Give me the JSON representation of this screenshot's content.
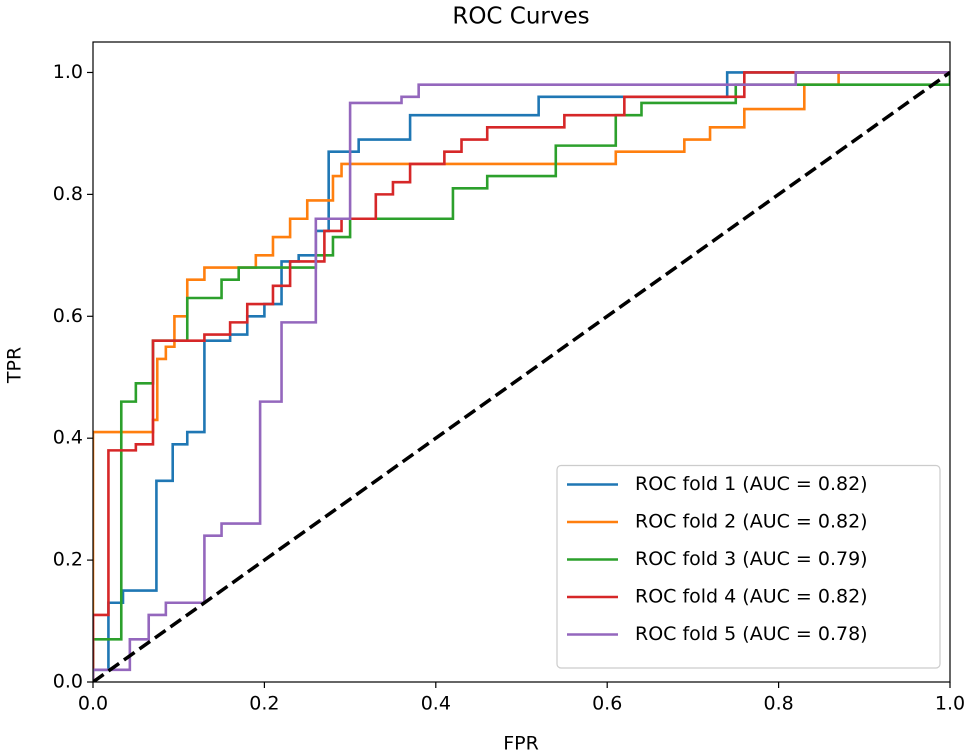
{
  "chart_data": {
    "type": "line",
    "title": "ROC Curves",
    "xlabel": "FPR",
    "ylabel": "TPR",
    "xlim": [
      0,
      1
    ],
    "ylim": [
      0,
      1.05
    ],
    "xticks": [
      {
        "value": 0,
        "label": "0.0"
      },
      0.2,
      0.4,
      0.6,
      0.8,
      {
        "value": 1,
        "label": "1.0"
      }
    ],
    "yticks": [
      {
        "value": 0,
        "label": "0.0"
      },
      0.2,
      0.4,
      0.6,
      0.8,
      {
        "value": 1,
        "label": "1.0"
      }
    ],
    "legend": "lower right",
    "reference_line": {
      "x": [
        0,
        1
      ],
      "values": [
        0,
        1
      ],
      "color": "#000000",
      "dashed": true
    },
    "series": [
      {
        "name": "ROC fold 1 (AUC = 0.82)",
        "color": "#1f77b4",
        "x": [
          0,
          0,
          0.018,
          0.018,
          0.035,
          0.035,
          0.074,
          0.074,
          0.093,
          0.093,
          0.11,
          0.11,
          0.13,
          0.13,
          0.16,
          0.16,
          0.18,
          0.18,
          0.2,
          0.2,
          0.22,
          0.22,
          0.24,
          0.24,
          0.26,
          0.26,
          0.275,
          0.275,
          0.31,
          0.31,
          0.37,
          0.37,
          0.52,
          0.52,
          0.74,
          0.74,
          1
        ],
        "values": [
          0,
          0.02,
          0.02,
          0.13,
          0.13,
          0.15,
          0.15,
          0.33,
          0.33,
          0.39,
          0.39,
          0.41,
          0.41,
          0.56,
          0.56,
          0.57,
          0.57,
          0.6,
          0.6,
          0.62,
          0.62,
          0.69,
          0.69,
          0.7,
          0.7,
          0.74,
          0.74,
          0.87,
          0.87,
          0.89,
          0.89,
          0.93,
          0.93,
          0.96,
          0.96,
          1,
          1
        ]
      },
      {
        "name": "ROC fold 2 (AUC = 0.82)",
        "color": "#ff7f0e",
        "x": [
          0,
          0,
          0.07,
          0.07,
          0.075,
          0.075,
          0.085,
          0.085,
          0.095,
          0.095,
          0.11,
          0.11,
          0.13,
          0.13,
          0.19,
          0.19,
          0.21,
          0.21,
          0.23,
          0.23,
          0.25,
          0.25,
          0.28,
          0.28,
          0.29,
          0.29,
          0.61,
          0.61,
          0.69,
          0.69,
          0.72,
          0.72,
          0.76,
          0.76,
          0.83,
          0.83,
          0.87,
          0.87,
          1
        ],
        "values": [
          0,
          0.41,
          0.41,
          0.43,
          0.43,
          0.53,
          0.53,
          0.55,
          0.55,
          0.6,
          0.6,
          0.66,
          0.66,
          0.68,
          0.68,
          0.7,
          0.7,
          0.73,
          0.73,
          0.76,
          0.76,
          0.79,
          0.79,
          0.83,
          0.83,
          0.85,
          0.85,
          0.87,
          0.87,
          0.89,
          0.89,
          0.91,
          0.91,
          0.94,
          0.94,
          0.98,
          0.98,
          1,
          1
        ]
      },
      {
        "name": "ROC fold 3 (AUC = 0.79)",
        "color": "#2ca02c",
        "x": [
          0,
          0,
          0.033,
          0.033,
          0.05,
          0.05,
          0.07,
          0.07,
          0.11,
          0.11,
          0.15,
          0.15,
          0.17,
          0.17,
          0.26,
          0.26,
          0.28,
          0.28,
          0.3,
          0.3,
          0.42,
          0.42,
          0.46,
          0.46,
          0.54,
          0.54,
          0.61,
          0.61,
          0.64,
          0.64,
          0.75,
          0.75,
          1,
          1
        ],
        "values": [
          0,
          0.07,
          0.07,
          0.46,
          0.46,
          0.49,
          0.49,
          0.56,
          0.56,
          0.63,
          0.63,
          0.66,
          0.66,
          0.68,
          0.68,
          0.7,
          0.7,
          0.73,
          0.73,
          0.76,
          0.76,
          0.81,
          0.81,
          0.83,
          0.83,
          0.88,
          0.88,
          0.93,
          0.93,
          0.95,
          0.95,
          0.98,
          0.98,
          1
        ]
      },
      {
        "name": "ROC fold 4 (AUC = 0.82)",
        "color": "#d62728",
        "x": [
          0,
          0,
          0.018,
          0.018,
          0.05,
          0.05,
          0.07,
          0.07,
          0.13,
          0.13,
          0.16,
          0.16,
          0.18,
          0.18,
          0.21,
          0.21,
          0.23,
          0.23,
          0.27,
          0.27,
          0.29,
          0.29,
          0.33,
          0.33,
          0.35,
          0.35,
          0.37,
          0.37,
          0.41,
          0.41,
          0.43,
          0.43,
          0.46,
          0.46,
          0.55,
          0.55,
          0.62,
          0.62,
          0.76,
          0.76,
          1
        ],
        "values": [
          0,
          0.11,
          0.11,
          0.38,
          0.38,
          0.39,
          0.39,
          0.56,
          0.56,
          0.57,
          0.57,
          0.59,
          0.59,
          0.62,
          0.62,
          0.65,
          0.65,
          0.69,
          0.69,
          0.74,
          0.74,
          0.76,
          0.76,
          0.8,
          0.8,
          0.82,
          0.82,
          0.85,
          0.85,
          0.87,
          0.87,
          0.89,
          0.89,
          0.91,
          0.91,
          0.93,
          0.93,
          0.96,
          0.96,
          1,
          1
        ]
      },
      {
        "name": "ROC fold 5 (AUC = 0.78)",
        "color": "#9467bd",
        "x": [
          0,
          0,
          0.043,
          0.043,
          0.065,
          0.065,
          0.085,
          0.085,
          0.13,
          0.13,
          0.15,
          0.15,
          0.195,
          0.195,
          0.22,
          0.22,
          0.26,
          0.26,
          0.3,
          0.3,
          0.36,
          0.36,
          0.38,
          0.38,
          0.82,
          0.82,
          1
        ],
        "values": [
          0,
          0.02,
          0.02,
          0.07,
          0.07,
          0.11,
          0.11,
          0.13,
          0.13,
          0.24,
          0.24,
          0.26,
          0.26,
          0.46,
          0.46,
          0.59,
          0.59,
          0.76,
          0.76,
          0.95,
          0.95,
          0.96,
          0.96,
          0.98,
          0.98,
          1,
          1
        ]
      }
    ]
  }
}
